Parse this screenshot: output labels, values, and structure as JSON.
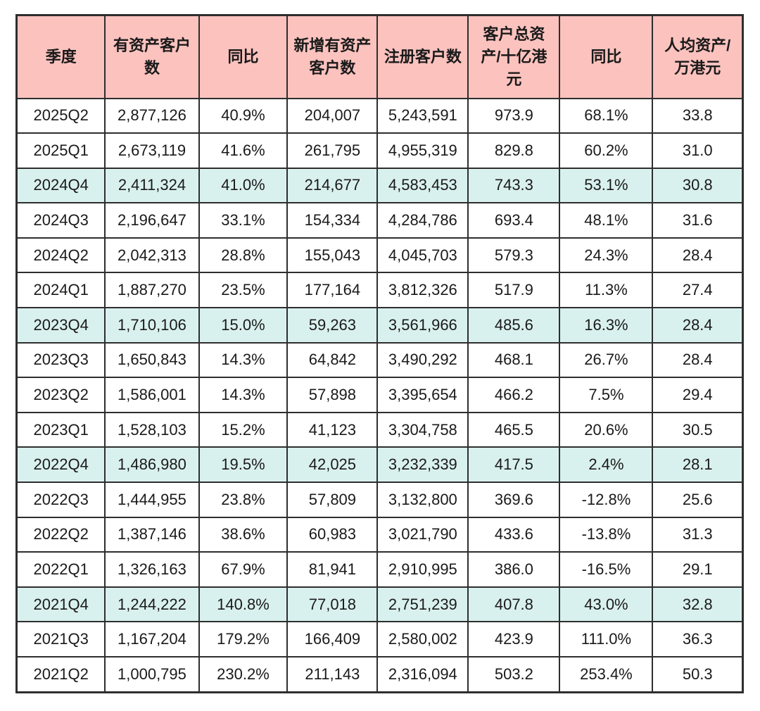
{
  "chart_data": {
    "type": "table",
    "title": "",
    "columns": [
      "季度",
      "有资产客户数",
      "同比",
      "新增有资产客户数",
      "注册客户数",
      "客户总资产/十亿港元",
      "同比",
      "人均资产/万港元"
    ],
    "rows": [
      {
        "cells": [
          "2025Q2",
          "2,877,126",
          "40.9%",
          "204,007",
          "5,243,591",
          "973.9",
          "68.1%",
          "33.8"
        ],
        "highlight": false
      },
      {
        "cells": [
          "2025Q1",
          "2,673,119",
          "41.6%",
          "261,795",
          "4,955,319",
          "829.8",
          "60.2%",
          "31.0"
        ],
        "highlight": false
      },
      {
        "cells": [
          "2024Q4",
          "2,411,324",
          "41.0%",
          "214,677",
          "4,583,453",
          "743.3",
          "53.1%",
          "30.8"
        ],
        "highlight": true
      },
      {
        "cells": [
          "2024Q3",
          "2,196,647",
          "33.1%",
          "154,334",
          "4,284,786",
          "693.4",
          "48.1%",
          "31.6"
        ],
        "highlight": false
      },
      {
        "cells": [
          "2024Q2",
          "2,042,313",
          "28.8%",
          "155,043",
          "4,045,703",
          "579.3",
          "24.3%",
          "28.4"
        ],
        "highlight": false
      },
      {
        "cells": [
          "2024Q1",
          "1,887,270",
          "23.5%",
          "177,164",
          "3,812,326",
          "517.9",
          "11.3%",
          "27.4"
        ],
        "highlight": false
      },
      {
        "cells": [
          "2023Q4",
          "1,710,106",
          "15.0%",
          "59,263",
          "3,561,966",
          "485.6",
          "16.3%",
          "28.4"
        ],
        "highlight": true
      },
      {
        "cells": [
          "2023Q3",
          "1,650,843",
          "14.3%",
          "64,842",
          "3,490,292",
          "468.1",
          "26.7%",
          "28.4"
        ],
        "highlight": false
      },
      {
        "cells": [
          "2023Q2",
          "1,586,001",
          "14.3%",
          "57,898",
          "3,395,654",
          "466.2",
          "7.5%",
          "29.4"
        ],
        "highlight": false
      },
      {
        "cells": [
          "2023Q1",
          "1,528,103",
          "15.2%",
          "41,123",
          "3,304,758",
          "465.5",
          "20.6%",
          "30.5"
        ],
        "highlight": false
      },
      {
        "cells": [
          "2022Q4",
          "1,486,980",
          "19.5%",
          "42,025",
          "3,232,339",
          "417.5",
          "2.4%",
          "28.1"
        ],
        "highlight": true
      },
      {
        "cells": [
          "2022Q3",
          "1,444,955",
          "23.8%",
          "57,809",
          "3,132,800",
          "369.6",
          "-12.8%",
          "25.6"
        ],
        "highlight": false
      },
      {
        "cells": [
          "2022Q2",
          "1,387,146",
          "38.6%",
          "60,983",
          "3,021,790",
          "433.6",
          "-13.8%",
          "31.3"
        ],
        "highlight": false
      },
      {
        "cells": [
          "2022Q1",
          "1,326,163",
          "67.9%",
          "81,941",
          "2,910,995",
          "386.0",
          "-16.5%",
          "29.1"
        ],
        "highlight": false
      },
      {
        "cells": [
          "2021Q4",
          "1,244,222",
          "140.8%",
          "77,018",
          "2,751,239",
          "407.8",
          "43.0%",
          "32.8"
        ],
        "highlight": true
      },
      {
        "cells": [
          "2021Q3",
          "1,167,204",
          "179.2%",
          "166,409",
          "2,580,002",
          "423.9",
          "111.0%",
          "36.3"
        ],
        "highlight": false
      },
      {
        "cells": [
          "2021Q2",
          "1,000,795",
          "230.2%",
          "211,143",
          "2,316,094",
          "503.2",
          "253.4%",
          "50.3"
        ],
        "highlight": false
      }
    ]
  },
  "colors": {
    "header_bg": "#fbc2be",
    "highlight_bg": "#d9f1ee",
    "border": "#2e2e2e",
    "text": "#1a1a1a",
    "background": "#ffffff"
  }
}
